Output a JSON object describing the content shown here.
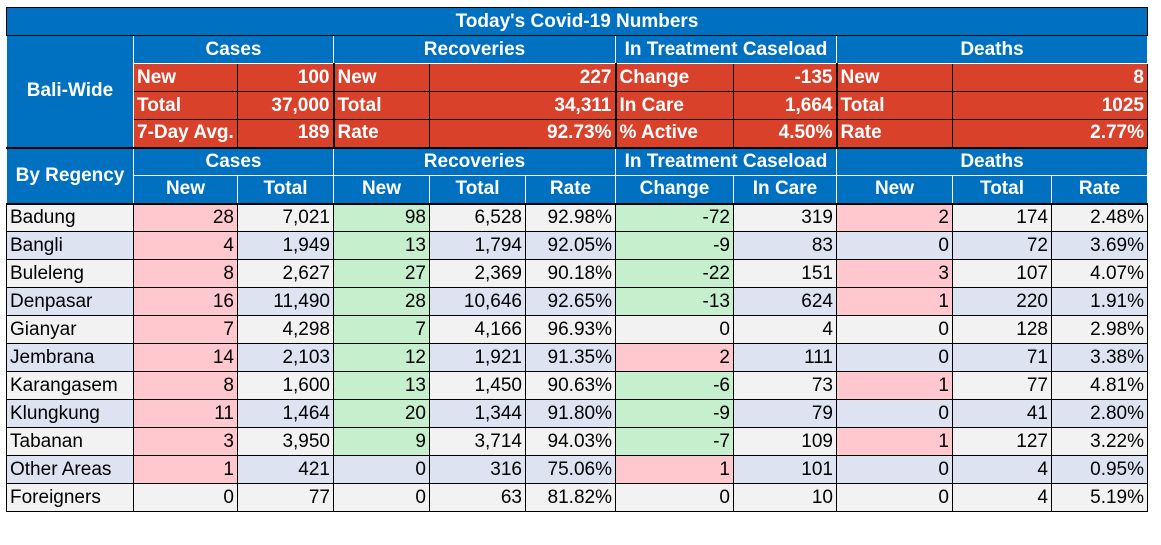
{
  "title": "Today's Covid-19 Numbers",
  "sections": [
    "Cases",
    "Recoveries",
    "In Treatment Caseload",
    "Deaths"
  ],
  "bali_wide": {
    "label": "Bali-Wide",
    "rows": [
      [
        "New",
        "100",
        "New",
        "227",
        "Change",
        "-135",
        "New",
        "8"
      ],
      [
        "Total",
        "37,000",
        "Total",
        "34,311",
        "In Care",
        "1,664",
        "Total",
        "1025"
      ],
      [
        "7-Day Avg.",
        "189",
        "Rate",
        "92.73%",
        "% Active",
        "4.50%",
        "Rate",
        "2.77%"
      ]
    ]
  },
  "by_regency": {
    "label": "By Regency",
    "subheaders": [
      "New",
      "Total",
      "New",
      "Total",
      "Rate",
      "Change",
      "In Care",
      "New",
      "Total",
      "Rate"
    ],
    "rows": [
      {
        "name": "Badung",
        "values": [
          "28",
          "7,021",
          "98",
          "6,528",
          "92.98%",
          "-72",
          "319",
          "2",
          "174",
          "2.48%"
        ]
      },
      {
        "name": "Bangli",
        "values": [
          "4",
          "1,949",
          "13",
          "1,794",
          "92.05%",
          "-9",
          "83",
          "0",
          "72",
          "3.69%"
        ]
      },
      {
        "name": "Buleleng",
        "values": [
          "8",
          "2,627",
          "27",
          "2,369",
          "90.18%",
          "-22",
          "151",
          "3",
          "107",
          "4.07%"
        ]
      },
      {
        "name": "Denpasar",
        "values": [
          "16",
          "11,490",
          "28",
          "10,646",
          "92.65%",
          "-13",
          "624",
          "1",
          "220",
          "1.91%"
        ]
      },
      {
        "name": "Gianyar",
        "values": [
          "7",
          "4,298",
          "7",
          "4,166",
          "96.93%",
          "0",
          "4",
          "0",
          "128",
          "2.98%"
        ]
      },
      {
        "name": "Jembrana",
        "values": [
          "14",
          "2,103",
          "12",
          "1,921",
          "91.35%",
          "2",
          "111",
          "0",
          "71",
          "3.38%"
        ]
      },
      {
        "name": "Karangasem",
        "values": [
          "8",
          "1,600",
          "13",
          "1,450",
          "90.63%",
          "-6",
          "73",
          "1",
          "77",
          "4.81%"
        ]
      },
      {
        "name": "Klungkung",
        "values": [
          "11",
          "1,464",
          "20",
          "1,344",
          "91.80%",
          "-9",
          "79",
          "0",
          "41",
          "2.80%"
        ]
      },
      {
        "name": "Tabanan",
        "values": [
          "3",
          "3,950",
          "9",
          "3,714",
          "94.03%",
          "-7",
          "109",
          "1",
          "127",
          "3.22%"
        ]
      },
      {
        "name": "Other Areas",
        "values": [
          "1",
          "421",
          "0",
          "316",
          "75.06%",
          "1",
          "101",
          "0",
          "4",
          "0.95%"
        ]
      },
      {
        "name": "Foreigners",
        "values": [
          "0",
          "77",
          "0",
          "63",
          "81.82%",
          "0",
          "10",
          "0",
          "4",
          "5.19%"
        ]
      }
    ]
  },
  "colors": {
    "header_blue": "#0070c0",
    "bali_red": "#d9412b",
    "increase_pink": "#ffc7ce",
    "recovery_green": "#c6efce",
    "band_blue": "#dde3f1",
    "band_gray": "#f2f2f2"
  }
}
